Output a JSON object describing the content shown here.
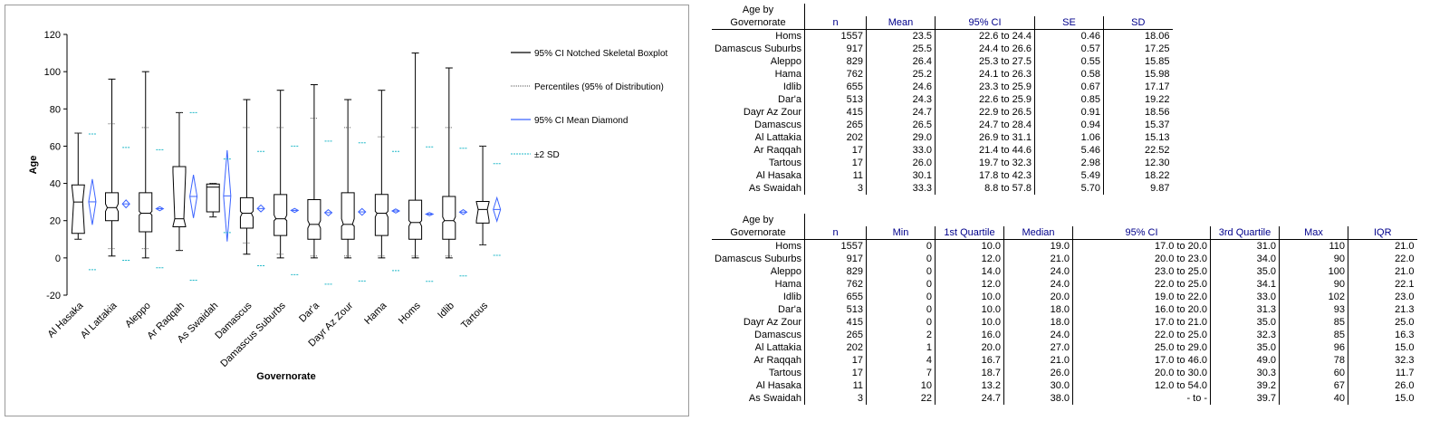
{
  "chart_data": {
    "type": "boxplot",
    "ylabel": "Age",
    "xlabel": "Governorate",
    "ylim": [
      -20,
      120
    ],
    "yticks": [
      -20,
      0,
      20,
      40,
      60,
      80,
      100,
      120
    ],
    "grid": false,
    "legend": {
      "placement": "right",
      "items": [
        {
          "label": "95% CI Notched Skeletal Boxplot",
          "style": "box",
          "color": "#000000"
        },
        {
          "label": "Percentiles (95% of Distribution)",
          "style": "dotted",
          "color": "#555555"
        },
        {
          "label": "95% CI Mean Diamond",
          "style": "diamond",
          "color": "#3b63ff"
        },
        {
          "label": "±2 SD",
          "style": "dashed",
          "color": "#1fb8c8"
        }
      ]
    },
    "categories": [
      "Al Hasaka",
      "Al Lattakia",
      "Aleppo",
      "Ar Raqqah",
      "As Swaidah",
      "Damascus",
      "Damascus Suburbs",
      "Dar'a",
      "Dayr Az Zour",
      "Hama",
      "Homs",
      "Idlib",
      "Tartous"
    ],
    "boxes": [
      {
        "min": 10,
        "q1": 13.2,
        "median": 30.0,
        "ci_low": 12.0,
        "ci_high": 54.0,
        "q3": 39.2,
        "max": 67,
        "p_low": 10,
        "p_high": 67,
        "mean": 30.1,
        "mean_ci_low": 17.8,
        "mean_ci_high": 42.3,
        "sd_low": -6.3,
        "sd_high": 66.5
      },
      {
        "min": 1,
        "q1": 20.0,
        "median": 27.0,
        "ci_low": 25.0,
        "ci_high": 29.0,
        "q3": 35.0,
        "max": 96,
        "p_low": 5,
        "p_high": 72,
        "mean": 29.0,
        "mean_ci_low": 26.9,
        "mean_ci_high": 31.1,
        "sd_low": -1.3,
        "sd_high": 59.3
      },
      {
        "min": 0,
        "q1": 14.0,
        "median": 24.0,
        "ci_low": 23.0,
        "ci_high": 25.0,
        "q3": 35.0,
        "max": 100,
        "p_low": 5,
        "p_high": 70,
        "mean": 26.4,
        "mean_ci_low": 25.3,
        "mean_ci_high": 27.5,
        "sd_low": -5.3,
        "sd_high": 58.1
      },
      {
        "min": 4,
        "q1": 16.7,
        "median": 21.0,
        "ci_low": 17.0,
        "ci_high": 46.0,
        "q3": 49.0,
        "max": 78,
        "p_low": 4,
        "p_high": 78,
        "mean": 33.0,
        "mean_ci_low": 21.4,
        "mean_ci_high": 44.6,
        "sd_low": -12.0,
        "sd_high": 78.0
      },
      {
        "min": 22,
        "q1": 24.7,
        "median": 38.0,
        "ci_low": null,
        "ci_high": null,
        "q3": 39.7,
        "max": 40,
        "p_low": 22,
        "p_high": 40,
        "mean": 33.3,
        "mean_ci_low": 8.8,
        "mean_ci_high": 57.8,
        "sd_low": 13.6,
        "sd_high": 53.1
      },
      {
        "min": 2,
        "q1": 16.0,
        "median": 24.0,
        "ci_low": 22.0,
        "ci_high": 25.0,
        "q3": 32.3,
        "max": 85,
        "p_low": 8,
        "p_high": 70,
        "mean": 26.5,
        "mean_ci_low": 24.7,
        "mean_ci_high": 28.4,
        "sd_low": -4.2,
        "sd_high": 57.2
      },
      {
        "min": 0,
        "q1": 12.0,
        "median": 21.0,
        "ci_low": 20.0,
        "ci_high": 23.0,
        "q3": 34.0,
        "max": 90,
        "p_low": 2,
        "p_high": 70,
        "mean": 25.5,
        "mean_ci_low": 24.4,
        "mean_ci_high": 26.6,
        "sd_low": -9.0,
        "sd_high": 60.0
      },
      {
        "min": 0,
        "q1": 10.0,
        "median": 18.0,
        "ci_low": 16.0,
        "ci_high": 20.0,
        "q3": 31.3,
        "max": 93,
        "p_low": 1,
        "p_high": 75,
        "mean": 24.3,
        "mean_ci_low": 22.6,
        "mean_ci_high": 25.9,
        "sd_low": -14.1,
        "sd_high": 62.7
      },
      {
        "min": 0,
        "q1": 10.0,
        "median": 18.0,
        "ci_low": 17.0,
        "ci_high": 21.0,
        "q3": 35.0,
        "max": 85,
        "p_low": 1,
        "p_high": 70,
        "mean": 24.7,
        "mean_ci_low": 22.9,
        "mean_ci_high": 26.5,
        "sd_low": -12.4,
        "sd_high": 61.8
      },
      {
        "min": 0,
        "q1": 12.0,
        "median": 24.0,
        "ci_low": 22.0,
        "ci_high": 25.0,
        "q3": 34.1,
        "max": 90,
        "p_low": 1,
        "p_high": 65,
        "mean": 25.2,
        "mean_ci_low": 24.1,
        "mean_ci_high": 26.3,
        "sd_low": -6.8,
        "sd_high": 57.2
      },
      {
        "min": 0,
        "q1": 10.0,
        "median": 19.0,
        "ci_low": 17.0,
        "ci_high": 20.0,
        "q3": 31.0,
        "max": 110,
        "p_low": 1,
        "p_high": 70,
        "mean": 23.5,
        "mean_ci_low": 22.6,
        "mean_ci_high": 24.4,
        "sd_low": -12.6,
        "sd_high": 59.6
      },
      {
        "min": 0,
        "q1": 10.0,
        "median": 20.0,
        "ci_low": 19.0,
        "ci_high": 22.0,
        "q3": 33.0,
        "max": 102,
        "p_low": 1,
        "p_high": 70,
        "mean": 24.6,
        "mean_ci_low": 23.3,
        "mean_ci_high": 25.9,
        "sd_low": -9.7,
        "sd_high": 58.9
      },
      {
        "min": 7,
        "q1": 18.7,
        "median": 26.0,
        "ci_low": 20.0,
        "ci_high": 30.0,
        "q3": 30.3,
        "max": 60,
        "p_low": 7,
        "p_high": 60,
        "mean": 26.0,
        "mean_ci_low": 19.7,
        "mean_ci_high": 32.3,
        "sd_low": 1.4,
        "sd_high": 50.6
      }
    ]
  },
  "table1": {
    "head_label_1": "Age by",
    "head_label_2": "Governorate",
    "columns": [
      "n",
      "Mean",
      "95% CI",
      "SE",
      "SD"
    ],
    "rows": [
      [
        "Homs",
        "1557",
        "23.5",
        "22.6",
        "24.4",
        "0.46",
        "18.06"
      ],
      [
        "Damascus Suburbs",
        "917",
        "25.5",
        "24.4",
        "26.6",
        "0.57",
        "17.25"
      ],
      [
        "Aleppo",
        "829",
        "26.4",
        "25.3",
        "27.5",
        "0.55",
        "15.85"
      ],
      [
        "Hama",
        "762",
        "25.2",
        "24.1",
        "26.3",
        "0.58",
        "15.98"
      ],
      [
        "Idlib",
        "655",
        "24.6",
        "23.3",
        "25.9",
        "0.67",
        "17.17"
      ],
      [
        "Dar'a",
        "513",
        "24.3",
        "22.6",
        "25.9",
        "0.85",
        "19.22"
      ],
      [
        "Dayr Az Zour",
        "415",
        "24.7",
        "22.9",
        "26.5",
        "0.91",
        "18.56"
      ],
      [
        "Damascus",
        "265",
        "26.5",
        "24.7",
        "28.4",
        "0.94",
        "15.37"
      ],
      [
        "Al Lattakia",
        "202",
        "29.0",
        "26.9",
        "31.1",
        "1.06",
        "15.13"
      ],
      [
        "Ar Raqqah",
        "17",
        "33.0",
        "21.4",
        "44.6",
        "5.46",
        "22.52"
      ],
      [
        "Tartous",
        "17",
        "26.0",
        "19.7",
        "32.3",
        "2.98",
        "12.30"
      ],
      [
        "Al Hasaka",
        "11",
        "30.1",
        "17.8",
        "42.3",
        "5.49",
        "18.22"
      ],
      [
        "As Swaidah",
        "3",
        "33.3",
        "8.8",
        "57.8",
        "5.70",
        "9.87"
      ]
    ]
  },
  "table2": {
    "head_label_1": "Age by",
    "head_label_2": "Governorate",
    "columns": [
      "n",
      "Min",
      "1st Quartile",
      "Median",
      "95% CI",
      "3rd Quartile",
      "Max",
      "IQR"
    ],
    "rows": [
      [
        "Homs",
        "1557",
        "0",
        "10.0",
        "19.0",
        "17.0",
        "20.0",
        "31.0",
        "110",
        "21.0"
      ],
      [
        "Damascus Suburbs",
        "917",
        "0",
        "12.0",
        "21.0",
        "20.0",
        "23.0",
        "34.0",
        "90",
        "22.0"
      ],
      [
        "Aleppo",
        "829",
        "0",
        "14.0",
        "24.0",
        "23.0",
        "25.0",
        "35.0",
        "100",
        "21.0"
      ],
      [
        "Hama",
        "762",
        "0",
        "12.0",
        "24.0",
        "22.0",
        "25.0",
        "34.1",
        "90",
        "22.1"
      ],
      [
        "Idlib",
        "655",
        "0",
        "10.0",
        "20.0",
        "19.0",
        "22.0",
        "33.0",
        "102",
        "23.0"
      ],
      [
        "Dar'a",
        "513",
        "0",
        "10.0",
        "18.0",
        "16.0",
        "20.0",
        "31.3",
        "93",
        "21.3"
      ],
      [
        "Dayr Az Zour",
        "415",
        "0",
        "10.0",
        "18.0",
        "17.0",
        "21.0",
        "35.0",
        "85",
        "25.0"
      ],
      [
        "Damascus",
        "265",
        "2",
        "16.0",
        "24.0",
        "22.0",
        "25.0",
        "32.3",
        "85",
        "16.3"
      ],
      [
        "Al Lattakia",
        "202",
        "1",
        "20.0",
        "27.0",
        "25.0",
        "29.0",
        "35.0",
        "96",
        "15.0"
      ],
      [
        "Ar Raqqah",
        "17",
        "4",
        "16.7",
        "21.0",
        "17.0",
        "46.0",
        "49.0",
        "78",
        "32.3"
      ],
      [
        "Tartous",
        "17",
        "7",
        "18.7",
        "26.0",
        "20.0",
        "30.0",
        "30.3",
        "60",
        "11.7"
      ],
      [
        "Al Hasaka",
        "11",
        "10",
        "13.2",
        "30.0",
        "12.0",
        "54.0",
        "39.2",
        "67",
        "26.0"
      ],
      [
        "As Swaidah",
        "3",
        "22",
        "24.7",
        "38.0",
        "-",
        "-",
        "39.7",
        "40",
        "15.0"
      ]
    ]
  },
  "ci_separator": "to"
}
